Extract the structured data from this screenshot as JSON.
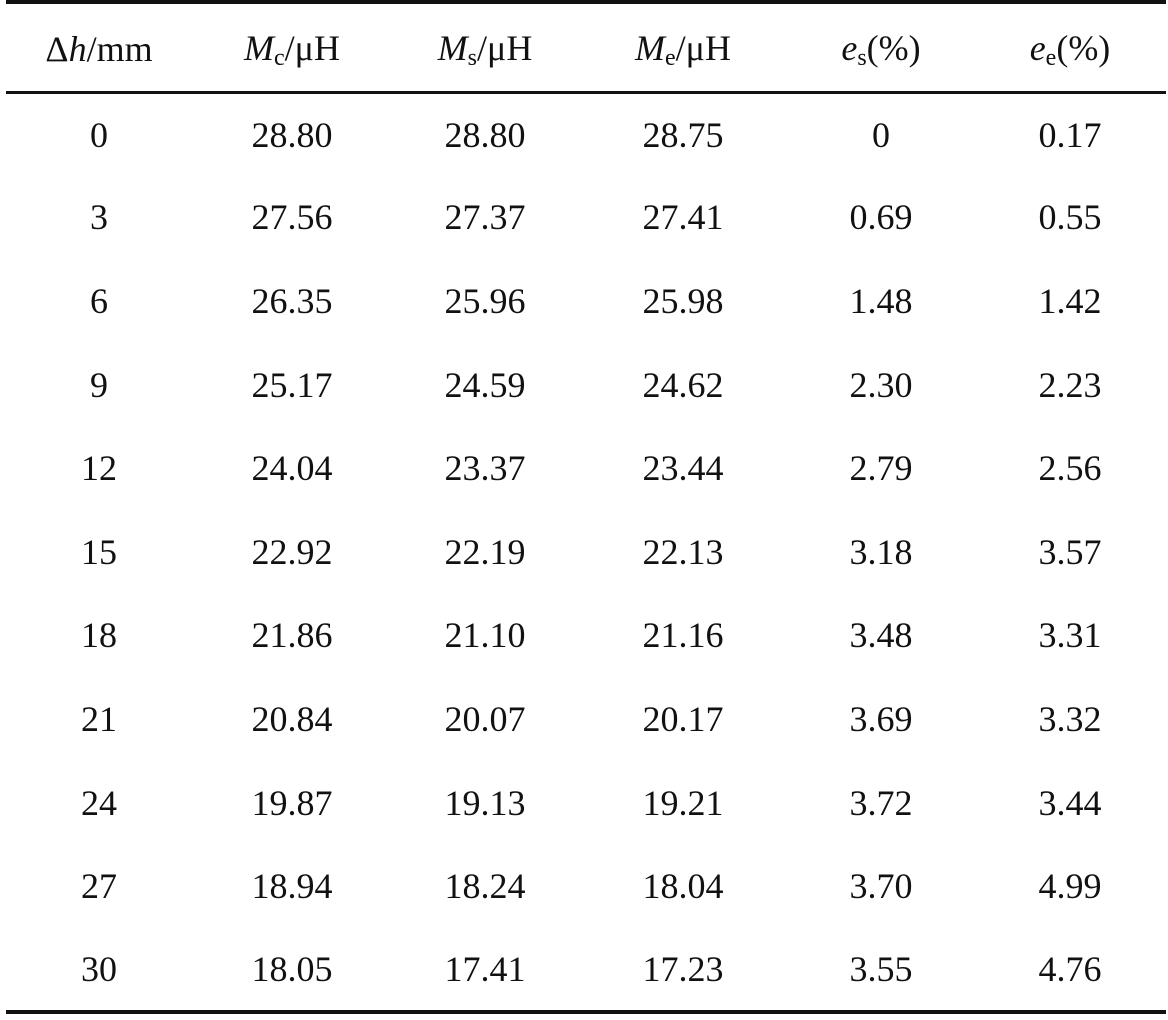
{
  "table": {
    "headers": [
      {
        "pre": "Δ",
        "sym": "h",
        "sub": "",
        "post": "/mm"
      },
      {
        "pre": "",
        "sym": "M",
        "sub": "c",
        "post": "/μH"
      },
      {
        "pre": "",
        "sym": "M",
        "sub": "s",
        "post": "/μH"
      },
      {
        "pre": "",
        "sym": "M",
        "sub": "e",
        "post": "/μH"
      },
      {
        "pre": "",
        "sym": "e",
        "sub": "s",
        "post": "(%)"
      },
      {
        "pre": "",
        "sym": "e",
        "sub": "e",
        "post": "(%)"
      }
    ],
    "rows": [
      [
        "0",
        "28.80",
        "28.80",
        "28.75",
        "0",
        "0.17"
      ],
      [
        "3",
        "27.56",
        "27.37",
        "27.41",
        "0.69",
        "0.55"
      ],
      [
        "6",
        "26.35",
        "25.96",
        "25.98",
        "1.48",
        "1.42"
      ],
      [
        "9",
        "25.17",
        "24.59",
        "24.62",
        "2.30",
        "2.23"
      ],
      [
        "12",
        "24.04",
        "23.37",
        "23.44",
        "2.79",
        "2.56"
      ],
      [
        "15",
        "22.92",
        "22.19",
        "22.13",
        "3.18",
        "3.57"
      ],
      [
        "18",
        "21.86",
        "21.10",
        "21.16",
        "3.48",
        "3.31"
      ],
      [
        "21",
        "20.84",
        "20.07",
        "20.17",
        "3.69",
        "3.32"
      ],
      [
        "24",
        "19.87",
        "19.13",
        "19.21",
        "3.72",
        "3.44"
      ],
      [
        "27",
        "18.94",
        "18.24",
        "18.04",
        "3.70",
        "4.99"
      ],
      [
        "30",
        "18.05",
        "17.41",
        "17.23",
        "3.55",
        "4.76"
      ]
    ]
  }
}
